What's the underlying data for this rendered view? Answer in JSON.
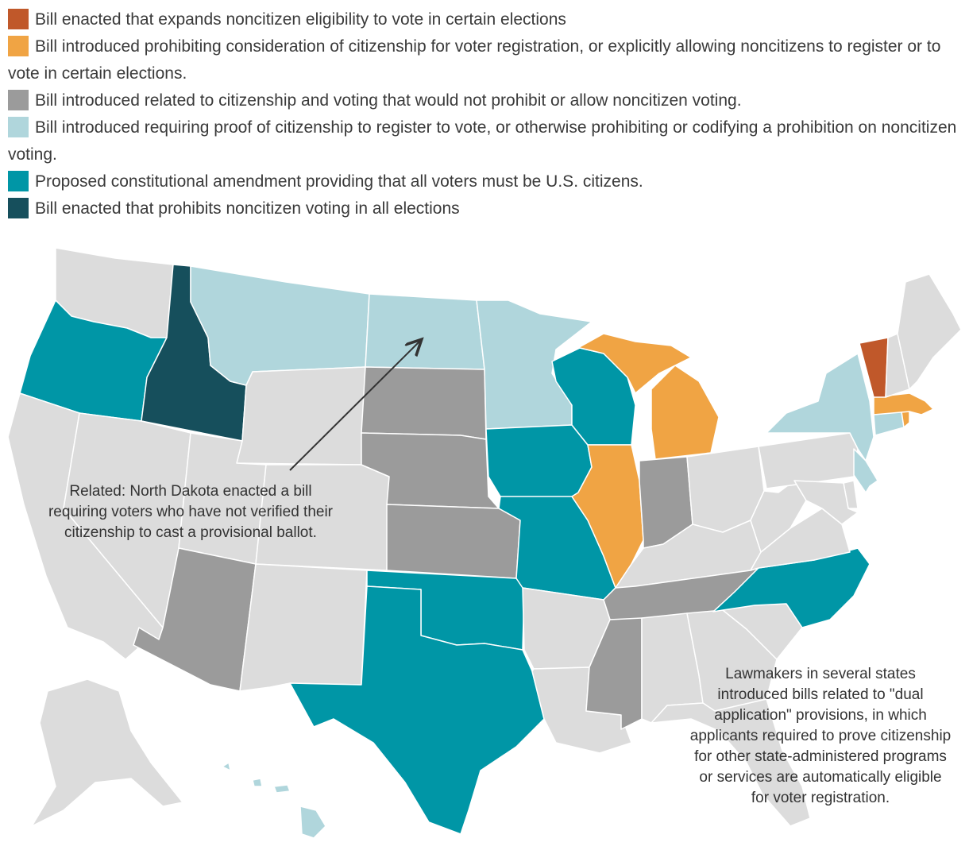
{
  "legend": [
    {
      "label": "Bill enacted that expands noncitizen eligibility to vote in certain elections",
      "color": "#c0582a"
    },
    {
      "label": "Bill introduced prohibiting consideration of citizenship for voter registration, or explicitly allowing noncitizens to register or to vote in certain elections.",
      "color": "#f0a444"
    },
    {
      "label": "Bill introduced related to citizenship and voting that would not prohibit or allow noncitizen voting.",
      "color": "#9b9b9b"
    },
    {
      "label": "Bill introduced requiring proof of citizenship to register to vote, or otherwise prohibiting or codifying a prohibition on noncitizen voting.",
      "color": "#b0d6dc"
    },
    {
      "label": "Proposed constitutional amendment providing that all voters must be U.S. citizens.",
      "color": "#0096a6"
    },
    {
      "label": "Bill enacted that prohibits noncitizen voting in all elections",
      "color": "#164f5c"
    }
  ],
  "colors": {
    "no_action": "#dcdcdc",
    "border": "#ffffff",
    "arrow": "#333333"
  },
  "annotations": {
    "north_dakota": "Related: North Dakota enacted a bill requiring voters who have not verified their citizenship to cast a provisional ballot.",
    "dual_application": "Lawmakers in several states introduced bills related to \"dual application\" provisions, in which applicants required to prove citizenship for other state-administered programs or services are automatically eligible for voter registration."
  },
  "states": {
    "WA": 6,
    "OR": 4,
    "CA": 6,
    "ID": 5,
    "NV": 6,
    "MT": 3,
    "WY": 6,
    "UT": 6,
    "AZ": 2,
    "CO": 6,
    "NM": 6,
    "ND": 3,
    "SD": 2,
    "NE": 2,
    "KS": 2,
    "OK": 4,
    "TX": 4,
    "MN": 3,
    "IA": 4,
    "MO": 4,
    "AR": 6,
    "LA": 6,
    "WI": 4,
    "IL": 1,
    "MI": 1,
    "IN": 2,
    "OH": 6,
    "KY": 6,
    "TN": 2,
    "MS": 2,
    "AL": 6,
    "GA": 6,
    "FL": 6,
    "SC": 6,
    "NC": 4,
    "VA": 6,
    "WV": 6,
    "PA": 6,
    "NY": 3,
    "NJ": 3,
    "DE": 6,
    "MD": 6,
    "CT": 3,
    "RI": 1,
    "MA": 1,
    "VT": 0,
    "NH": 6,
    "ME": 6,
    "AK": 6,
    "HI": 3
  }
}
